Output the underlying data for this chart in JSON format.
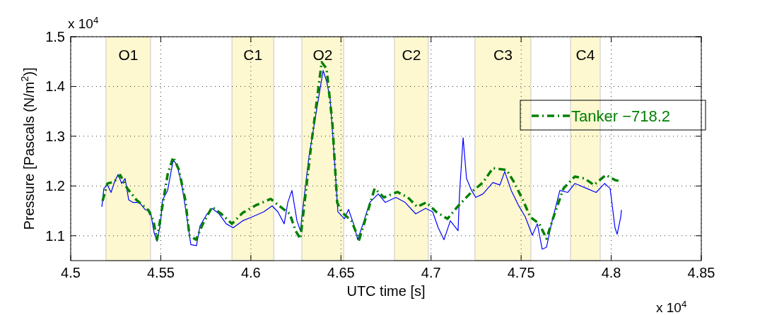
{
  "chart_data": {
    "type": "line",
    "xlabel": "UTC time [s]",
    "ylabel": "Pressure [Pascals (N/m$^{2}$)]",
    "xlim": [
      4.5,
      4.85
    ],
    "ylim": [
      1.05,
      1.5
    ],
    "xticks": [
      4.5,
      4.55,
      4.6,
      4.65,
      4.7,
      4.75,
      4.8,
      4.85
    ],
    "yticks": [
      1.1,
      1.2,
      1.3,
      1.4,
      1.5
    ],
    "grid": true,
    "legend": "top right",
    "annotations": [
      "x 10$^{4}$",
      "x 10$^{4}$"
    ],
    "bands": [
      {
        "axis": "x",
        "from": 4.5196,
        "to": 4.5443,
        "label": "O1",
        "color": "#fdf8cf"
      },
      {
        "axis": "x",
        "from": 4.5895,
        "to": 4.6127,
        "label": "C1",
        "color": "#fdf8cf"
      },
      {
        "axis": "x",
        "from": 4.6283,
        "to": 4.6515,
        "label": "O2",
        "color": "#fdf8cf"
      },
      {
        "axis": "x",
        "from": 4.6797,
        "to": 4.6985,
        "label": "C2",
        "color": "#fdf8cf"
      },
      {
        "axis": "x",
        "from": 4.7244,
        "to": 4.7554,
        "label": "C3",
        "color": "#fdf8cf"
      },
      {
        "axis": "x",
        "from": 4.7774,
        "to": 4.7939,
        "label": "C4",
        "color": "#fdf8cf"
      }
    ],
    "series": [
      {
        "color": "#0000ff",
        "line_style": "solid",
        "x": [
          4.5173,
          4.5184,
          4.5204,
          4.5224,
          4.5243,
          4.5263,
          4.5283,
          4.5302,
          4.5322,
          4.5345,
          4.5381,
          4.5412,
          4.5443,
          4.5463,
          4.5479,
          4.5498,
          4.551,
          4.5538,
          4.5569,
          4.5589,
          4.5616,
          4.564,
          4.5667,
          4.5698,
          4.5718,
          4.5757,
          4.5785,
          4.5824,
          4.5863,
          4.5902,
          4.5954,
          4.6008,
          4.6071,
          4.6118,
          4.615,
          4.6185,
          4.6205,
          4.6228,
          4.6256,
          4.6275,
          4.6283,
          4.6322,
          4.6362,
          4.6401,
          4.642,
          4.644,
          4.6464,
          4.6483,
          4.6519,
          4.6542,
          4.657,
          4.6593,
          4.6628,
          4.666,
          4.6707,
          4.6746,
          4.6805,
          4.6856,
          4.6915,
          4.697,
          4.7009,
          4.704,
          4.7072,
          4.7107,
          4.715,
          4.7158,
          4.7178,
          4.7197,
          4.7225,
          4.7248,
          4.7288,
          4.7343,
          4.7382,
          4.7409,
          4.7445,
          4.7484,
          4.7523,
          4.7562,
          4.759,
          4.7617,
          4.7641,
          4.7668,
          4.7715,
          4.7759,
          4.7798,
          4.7865,
          4.7916,
          4.7963,
          4.7994,
          4.8021,
          4.8033,
          4.8053,
          4.8057
        ],
        "values": [
          1.158,
          1.195,
          1.202,
          1.187,
          1.208,
          1.223,
          1.205,
          1.215,
          1.172,
          1.167,
          1.167,
          1.153,
          1.148,
          1.106,
          1.089,
          1.124,
          1.172,
          1.191,
          1.252,
          1.243,
          1.205,
          1.148,
          1.082,
          1.08,
          1.12,
          1.144,
          1.155,
          1.144,
          1.124,
          1.116,
          1.13,
          1.138,
          1.148,
          1.16,
          1.148,
          1.124,
          1.167,
          1.191,
          1.13,
          1.11,
          1.138,
          1.258,
          1.347,
          1.432,
          1.411,
          1.375,
          1.252,
          1.148,
          1.134,
          1.153,
          1.124,
          1.092,
          1.13,
          1.167,
          1.184,
          1.167,
          1.177,
          1.167,
          1.144,
          1.155,
          1.148,
          1.116,
          1.092,
          1.13,
          1.11,
          1.184,
          1.297,
          1.215,
          1.191,
          1.177,
          1.184,
          1.207,
          1.202,
          1.229,
          1.191,
          1.162,
          1.138,
          1.101,
          1.124,
          1.073,
          1.077,
          1.124,
          1.191,
          1.187,
          1.205,
          1.195,
          1.187,
          1.205,
          1.195,
          1.116,
          1.103,
          1.138,
          1.152
        ]
      },
      {
        "name": "Tanker −718.2",
        "color": "#008000",
        "line_style": "dashed",
        "x": [
          4.5177,
          4.5204,
          4.5243,
          4.5275,
          4.5314,
          4.5365,
          4.5432,
          4.5459,
          4.5479,
          4.551,
          4.5538,
          4.5569,
          4.56,
          4.5636,
          4.5659,
          4.5695,
          4.5734,
          4.5785,
          4.5836,
          4.5895,
          4.5954,
          4.6032,
          4.611,
          4.6165,
          4.6216,
          4.6248,
          4.6275,
          4.6334,
          4.6366,
          4.6393,
          4.642,
          4.6452,
          4.6479,
          4.6503,
          4.6558,
          4.6601,
          4.6648,
          4.6687,
          4.6738,
          4.6813,
          4.6872,
          4.6923,
          4.6974,
          4.7029,
          4.7091,
          4.7146,
          4.7225,
          4.7288,
          4.7343,
          4.742,
          4.746,
          4.7511,
          4.755,
          4.7601,
          4.7641,
          4.768,
          4.7735,
          4.7798,
          4.7853,
          4.7904,
          4.797,
          4.8021,
          4.8053
        ],
        "values": [
          1.17,
          1.205,
          1.209,
          1.222,
          1.195,
          1.172,
          1.151,
          1.13,
          1.092,
          1.162,
          1.223,
          1.258,
          1.233,
          1.172,
          1.101,
          1.092,
          1.124,
          1.158,
          1.144,
          1.124,
          1.146,
          1.162,
          1.174,
          1.158,
          1.144,
          1.11,
          1.094,
          1.28,
          1.371,
          1.449,
          1.436,
          1.328,
          1.167,
          1.148,
          1.13,
          1.092,
          1.148,
          1.195,
          1.177,
          1.188,
          1.177,
          1.158,
          1.167,
          1.148,
          1.134,
          1.158,
          1.188,
          1.207,
          1.236,
          1.232,
          1.208,
          1.171,
          1.138,
          1.124,
          1.094,
          1.138,
          1.195,
          1.219,
          1.215,
          1.202,
          1.222,
          1.212,
          1.209
        ]
      }
    ]
  }
}
